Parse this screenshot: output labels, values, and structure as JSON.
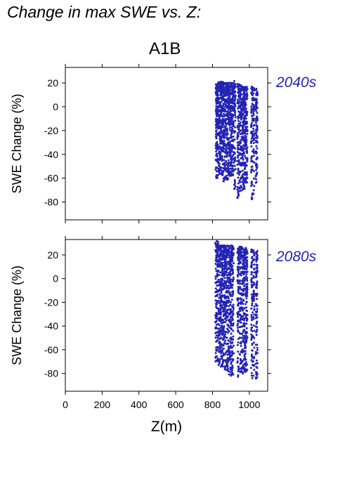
{
  "title": "Change in max SWE vs. Z:",
  "scenario": "A1B",
  "colors": {
    "points": "#2323b4",
    "axes": "#000000"
  },
  "chart_data": [
    {
      "type": "scatter",
      "panel_label": "2040s",
      "xlabel": "",
      "ylabel": "SWE Change (%)",
      "xlim": [
        0,
        1100
      ],
      "ylim": [
        -95,
        33
      ],
      "yticks": [
        20,
        0,
        -20,
        -40,
        -60,
        -80
      ],
      "xticks": [
        0,
        200,
        400,
        600,
        800,
        1000
      ],
      "show_x_ticklabels": false,
      "grid": false,
      "clusters": [
        {
          "x_range": [
            817,
            830
          ],
          "y_range": [
            -60,
            19
          ]
        },
        {
          "x_range": [
            830,
            858
          ],
          "y_range": [
            -58,
            21
          ]
        },
        {
          "x_range": [
            858,
            885
          ],
          "y_range": [
            -63,
            20
          ]
        },
        {
          "x_range": [
            885,
            915
          ],
          "y_range": [
            -58,
            20
          ]
        },
        {
          "x_range": [
            918,
            925
          ],
          "y_range": [
            -70,
            22
          ]
        },
        {
          "x_range": [
            935,
            945
          ],
          "y_range": [
            -77,
            19
          ]
        },
        {
          "x_range": [
            947,
            958
          ],
          "y_range": [
            -73,
            18
          ]
        },
        {
          "x_range": [
            960,
            975
          ],
          "y_range": [
            -70,
            17
          ]
        },
        {
          "x_range": [
            975,
            990
          ],
          "y_range": [
            -65,
            17
          ]
        },
        {
          "x_range": [
            1010,
            1018
          ],
          "y_range": [
            -78,
            17
          ]
        },
        {
          "x_range": [
            1022,
            1028
          ],
          "y_range": [
            -75,
            16
          ]
        },
        {
          "x_range": [
            1035,
            1045
          ],
          "y_range": [
            -65,
            15
          ]
        }
      ]
    },
    {
      "type": "scatter",
      "panel_label": "2080s",
      "xlabel": "Z(m)",
      "ylabel": "SWE Change (%)",
      "xlim": [
        0,
        1100
      ],
      "ylim": [
        -95,
        33
      ],
      "yticks": [
        20,
        0,
        -20,
        -40,
        -60,
        -80
      ],
      "xticks": [
        0,
        200,
        400,
        600,
        800,
        1000
      ],
      "show_x_ticklabels": true,
      "grid": false,
      "clusters": [
        {
          "x_range": [
            815,
            830
          ],
          "y_range": [
            -70,
            32
          ]
        },
        {
          "x_range": [
            830,
            858
          ],
          "y_range": [
            -75,
            28
          ]
        },
        {
          "x_range": [
            858,
            885
          ],
          "y_range": [
            -78,
            28
          ]
        },
        {
          "x_range": [
            885,
            915
          ],
          "y_range": [
            -82,
            28
          ]
        },
        {
          "x_range": [
            935,
            945
          ],
          "y_range": [
            -83,
            27
          ]
        },
        {
          "x_range": [
            947,
            958
          ],
          "y_range": [
            -80,
            27
          ]
        },
        {
          "x_range": [
            960,
            975
          ],
          "y_range": [
            -82,
            26
          ]
        },
        {
          "x_range": [
            975,
            990
          ],
          "y_range": [
            -80,
            26
          ]
        },
        {
          "x_range": [
            1010,
            1018
          ],
          "y_range": [
            -86,
            25
          ]
        },
        {
          "x_range": [
            1022,
            1028
          ],
          "y_range": [
            -83,
            24
          ]
        },
        {
          "x_range": [
            1035,
            1045
          ],
          "y_range": [
            -85,
            24
          ]
        }
      ]
    }
  ]
}
